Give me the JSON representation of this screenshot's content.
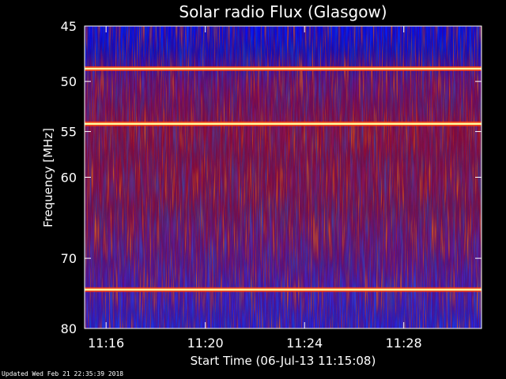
{
  "footer": {
    "updated": "Updated Wed Feb 21 22:35:39 2018"
  },
  "chart_data": {
    "type": "heatmap",
    "title": "Solar radio Flux (Glasgow)",
    "xlabel": "Start Time (06-Jul-13 11:15:08)",
    "ylabel": "Frequency [MHz]",
    "x_unit": "minutes",
    "xlim": [
      "11:15:08",
      "11:31:08"
    ],
    "ylim": [
      45,
      80
    ],
    "y_scale": "log",
    "x_ticks": [
      "11:16",
      "11:20",
      "11:24",
      "11:28"
    ],
    "y_ticks": [
      "45",
      "50",
      "55",
      "60",
      "70",
      "80"
    ],
    "colormap": [
      "#0000ff",
      "#4020c0",
      "#a01020",
      "#ff3000",
      "#ffff80"
    ],
    "interference_bands_mhz": [
      48.8,
      54.2,
      74.3
    ]
  }
}
